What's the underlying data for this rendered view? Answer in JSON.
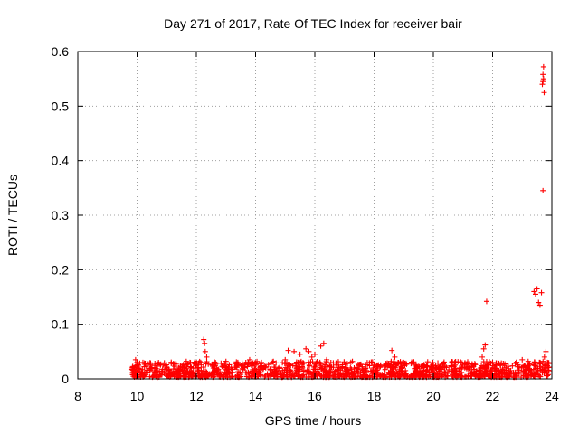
{
  "chart_data": {
    "type": "scatter",
    "title": "Day 271 of 2017, Rate Of TEC Index for receiver bair",
    "xlabel": "GPS time / hours",
    "ylabel": "ROTI / TECUs",
    "xlim": [
      8,
      24
    ],
    "ylim": [
      0,
      0.6
    ],
    "x_ticks": [
      8,
      10,
      12,
      14,
      16,
      18,
      20,
      22,
      24
    ],
    "x_tick_labels": [
      "8",
      "10",
      "12",
      "14",
      "16",
      "18",
      "20",
      "22",
      "24"
    ],
    "y_ticks": [
      0,
      0.1,
      0.2,
      0.3,
      0.4,
      0.5,
      0.6
    ],
    "y_tick_labels": [
      "0",
      "0.1",
      "0.2",
      "0.3",
      "0.4",
      "0.5",
      "0.6"
    ],
    "grid": true,
    "marker": "plus",
    "series_color": "#ff0000",
    "series": [
      {
        "name": "ROTI",
        "points": [
          [
            9.85,
            0.012
          ],
          [
            9.9,
            0.02
          ],
          [
            9.95,
            0.035
          ],
          [
            10.0,
            0.03
          ],
          [
            10.05,
            0.025
          ],
          [
            10.1,
            0.018
          ],
          [
            10.3,
            0.012
          ],
          [
            10.6,
            0.015
          ],
          [
            11.0,
            0.018
          ],
          [
            11.4,
            0.02
          ],
          [
            11.8,
            0.022
          ],
          [
            12.0,
            0.025
          ],
          [
            12.15,
            0.03
          ],
          [
            12.25,
            0.072
          ],
          [
            12.28,
            0.065
          ],
          [
            12.3,
            0.05
          ],
          [
            12.35,
            0.04
          ],
          [
            12.6,
            0.03
          ],
          [
            13.0,
            0.032
          ],
          [
            13.4,
            0.03
          ],
          [
            13.8,
            0.035
          ],
          [
            14.2,
            0.03
          ],
          [
            14.6,
            0.032
          ],
          [
            15.0,
            0.035
          ],
          [
            15.1,
            0.052
          ],
          [
            15.3,
            0.05
          ],
          [
            15.5,
            0.045
          ],
          [
            15.7,
            0.055
          ],
          [
            15.8,
            0.05
          ],
          [
            15.9,
            0.04
          ],
          [
            16.0,
            0.045
          ],
          [
            16.2,
            0.06
          ],
          [
            16.3,
            0.065
          ],
          [
            16.4,
            0.035
          ],
          [
            16.8,
            0.025
          ],
          [
            17.2,
            0.02
          ],
          [
            17.6,
            0.022
          ],
          [
            18.0,
            0.025
          ],
          [
            18.4,
            0.028
          ],
          [
            18.6,
            0.052
          ],
          [
            18.7,
            0.04
          ],
          [
            19.0,
            0.03
          ],
          [
            19.4,
            0.025
          ],
          [
            19.8,
            0.022
          ],
          [
            20.2,
            0.02
          ],
          [
            20.6,
            0.022
          ],
          [
            21.0,
            0.025
          ],
          [
            21.4,
            0.028
          ],
          [
            21.65,
            0.04
          ],
          [
            21.7,
            0.055
          ],
          [
            21.75,
            0.062
          ],
          [
            21.8,
            0.142
          ],
          [
            22.0,
            0.03
          ],
          [
            22.4,
            0.025
          ],
          [
            22.8,
            0.03
          ],
          [
            23.0,
            0.035
          ],
          [
            23.2,
            0.032
          ],
          [
            23.4,
            0.16
          ],
          [
            23.45,
            0.155
          ],
          [
            23.5,
            0.165
          ],
          [
            23.55,
            0.14
          ],
          [
            23.6,
            0.135
          ],
          [
            23.65,
            0.158
          ],
          [
            23.7,
            0.345
          ],
          [
            23.68,
            0.54
          ],
          [
            23.7,
            0.545
          ],
          [
            23.72,
            0.55
          ],
          [
            23.7,
            0.558
          ],
          [
            23.72,
            0.572
          ],
          [
            23.74,
            0.525
          ],
          [
            23.75,
            0.04
          ],
          [
            23.8,
            0.05
          ],
          [
            23.85,
            0.03
          ]
        ]
      }
    ],
    "dense_band": {
      "x_range": [
        9.8,
        23.9
      ],
      "y_range": [
        0.003,
        0.032
      ]
    }
  }
}
